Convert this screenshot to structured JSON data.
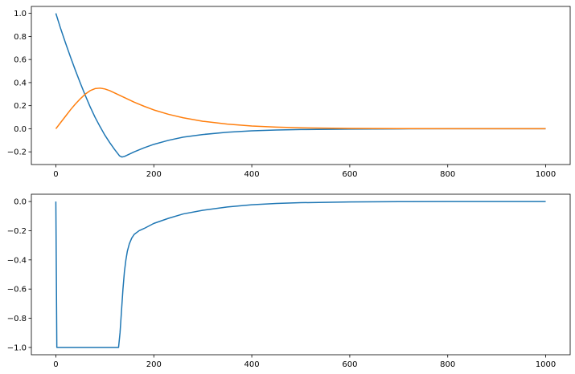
{
  "chart_data": [
    {
      "type": "line",
      "title": "",
      "xlabel": "",
      "ylabel": "",
      "xlim": [
        -50,
        1050
      ],
      "ylim": [
        -0.31,
        1.06
      ],
      "xticks": [
        0,
        200,
        400,
        600,
        800,
        1000
      ],
      "xtick_labels": [
        "0",
        "200",
        "400",
        "600",
        "800",
        "1000"
      ],
      "yticks": [
        -0.2,
        0.0,
        0.2,
        0.4,
        0.6,
        0.8,
        1.0
      ],
      "ytick_labels": [
        "−0.2",
        "0.0",
        "0.2",
        "0.4",
        "0.6",
        "0.8",
        "1.0"
      ],
      "grid": false,
      "series": [
        {
          "color": "#1f77b4",
          "x": [
            0,
            10,
            20,
            30,
            40,
            50,
            60,
            70,
            80,
            90,
            100,
            110,
            120,
            130,
            135,
            140,
            150,
            160,
            180,
            200,
            230,
            260,
            300,
            350,
            400,
            450,
            500,
            600,
            700,
            800,
            900,
            1000
          ],
          "y": [
            1.0,
            0.865,
            0.74,
            0.62,
            0.505,
            0.395,
            0.29,
            0.19,
            0.1,
            0.02,
            -0.055,
            -0.12,
            -0.18,
            -0.235,
            -0.245,
            -0.24,
            -0.22,
            -0.2,
            -0.165,
            -0.135,
            -0.1,
            -0.073,
            -0.05,
            -0.03,
            -0.018,
            -0.011,
            -0.007,
            -0.003,
            -0.001,
            0.0,
            0.0,
            0.0
          ]
        },
        {
          "color": "#ff7f0e",
          "x": [
            0,
            10,
            20,
            30,
            40,
            50,
            60,
            70,
            80,
            90,
            100,
            110,
            120,
            130,
            140,
            150,
            160,
            180,
            200,
            230,
            260,
            300,
            350,
            400,
            450,
            500,
            600,
            700,
            800,
            900,
            1000
          ],
          "y": [
            0.0,
            0.055,
            0.11,
            0.165,
            0.215,
            0.26,
            0.3,
            0.33,
            0.348,
            0.352,
            0.345,
            0.33,
            0.31,
            0.29,
            0.27,
            0.25,
            0.23,
            0.195,
            0.163,
            0.125,
            0.095,
            0.065,
            0.04,
            0.024,
            0.014,
            0.008,
            0.003,
            0.001,
            0.0,
            0.0,
            0.0
          ]
        }
      ]
    },
    {
      "type": "line",
      "title": "",
      "xlabel": "",
      "ylabel": "",
      "xlim": [
        -50,
        1050
      ],
      "ylim": [
        -1.05,
        0.05
      ],
      "xticks": [
        0,
        200,
        400,
        600,
        800,
        1000
      ],
      "xtick_labels": [
        "0",
        "200",
        "400",
        "600",
        "800",
        "1000"
      ],
      "yticks": [
        -1.0,
        -0.8,
        -0.6,
        -0.4,
        -0.2,
        0.0
      ],
      "ytick_labels": [
        "−1.0",
        "−0.8",
        "−0.6",
        "−0.4",
        "−0.2",
        "0.0"
      ],
      "grid": false,
      "series": [
        {
          "color": "#1f77b4",
          "x": [
            0,
            1,
            2,
            128,
            131,
            134,
            137,
            140,
            143,
            146,
            150,
            155,
            160,
            170,
            180,
            200,
            230,
            260,
            300,
            350,
            400,
            450,
            500,
            600,
            700,
            800,
            900,
            1000
          ],
          "y": [
            0.0,
            -0.5,
            -1.0,
            -1.0,
            -0.9,
            -0.75,
            -0.6,
            -0.48,
            -0.4,
            -0.34,
            -0.29,
            -0.25,
            -0.225,
            -0.2,
            -0.185,
            -0.15,
            -0.115,
            -0.085,
            -0.06,
            -0.037,
            -0.022,
            -0.013,
            -0.008,
            -0.003,
            -0.001,
            0.0,
            0.0,
            0.0
          ]
        }
      ]
    }
  ]
}
